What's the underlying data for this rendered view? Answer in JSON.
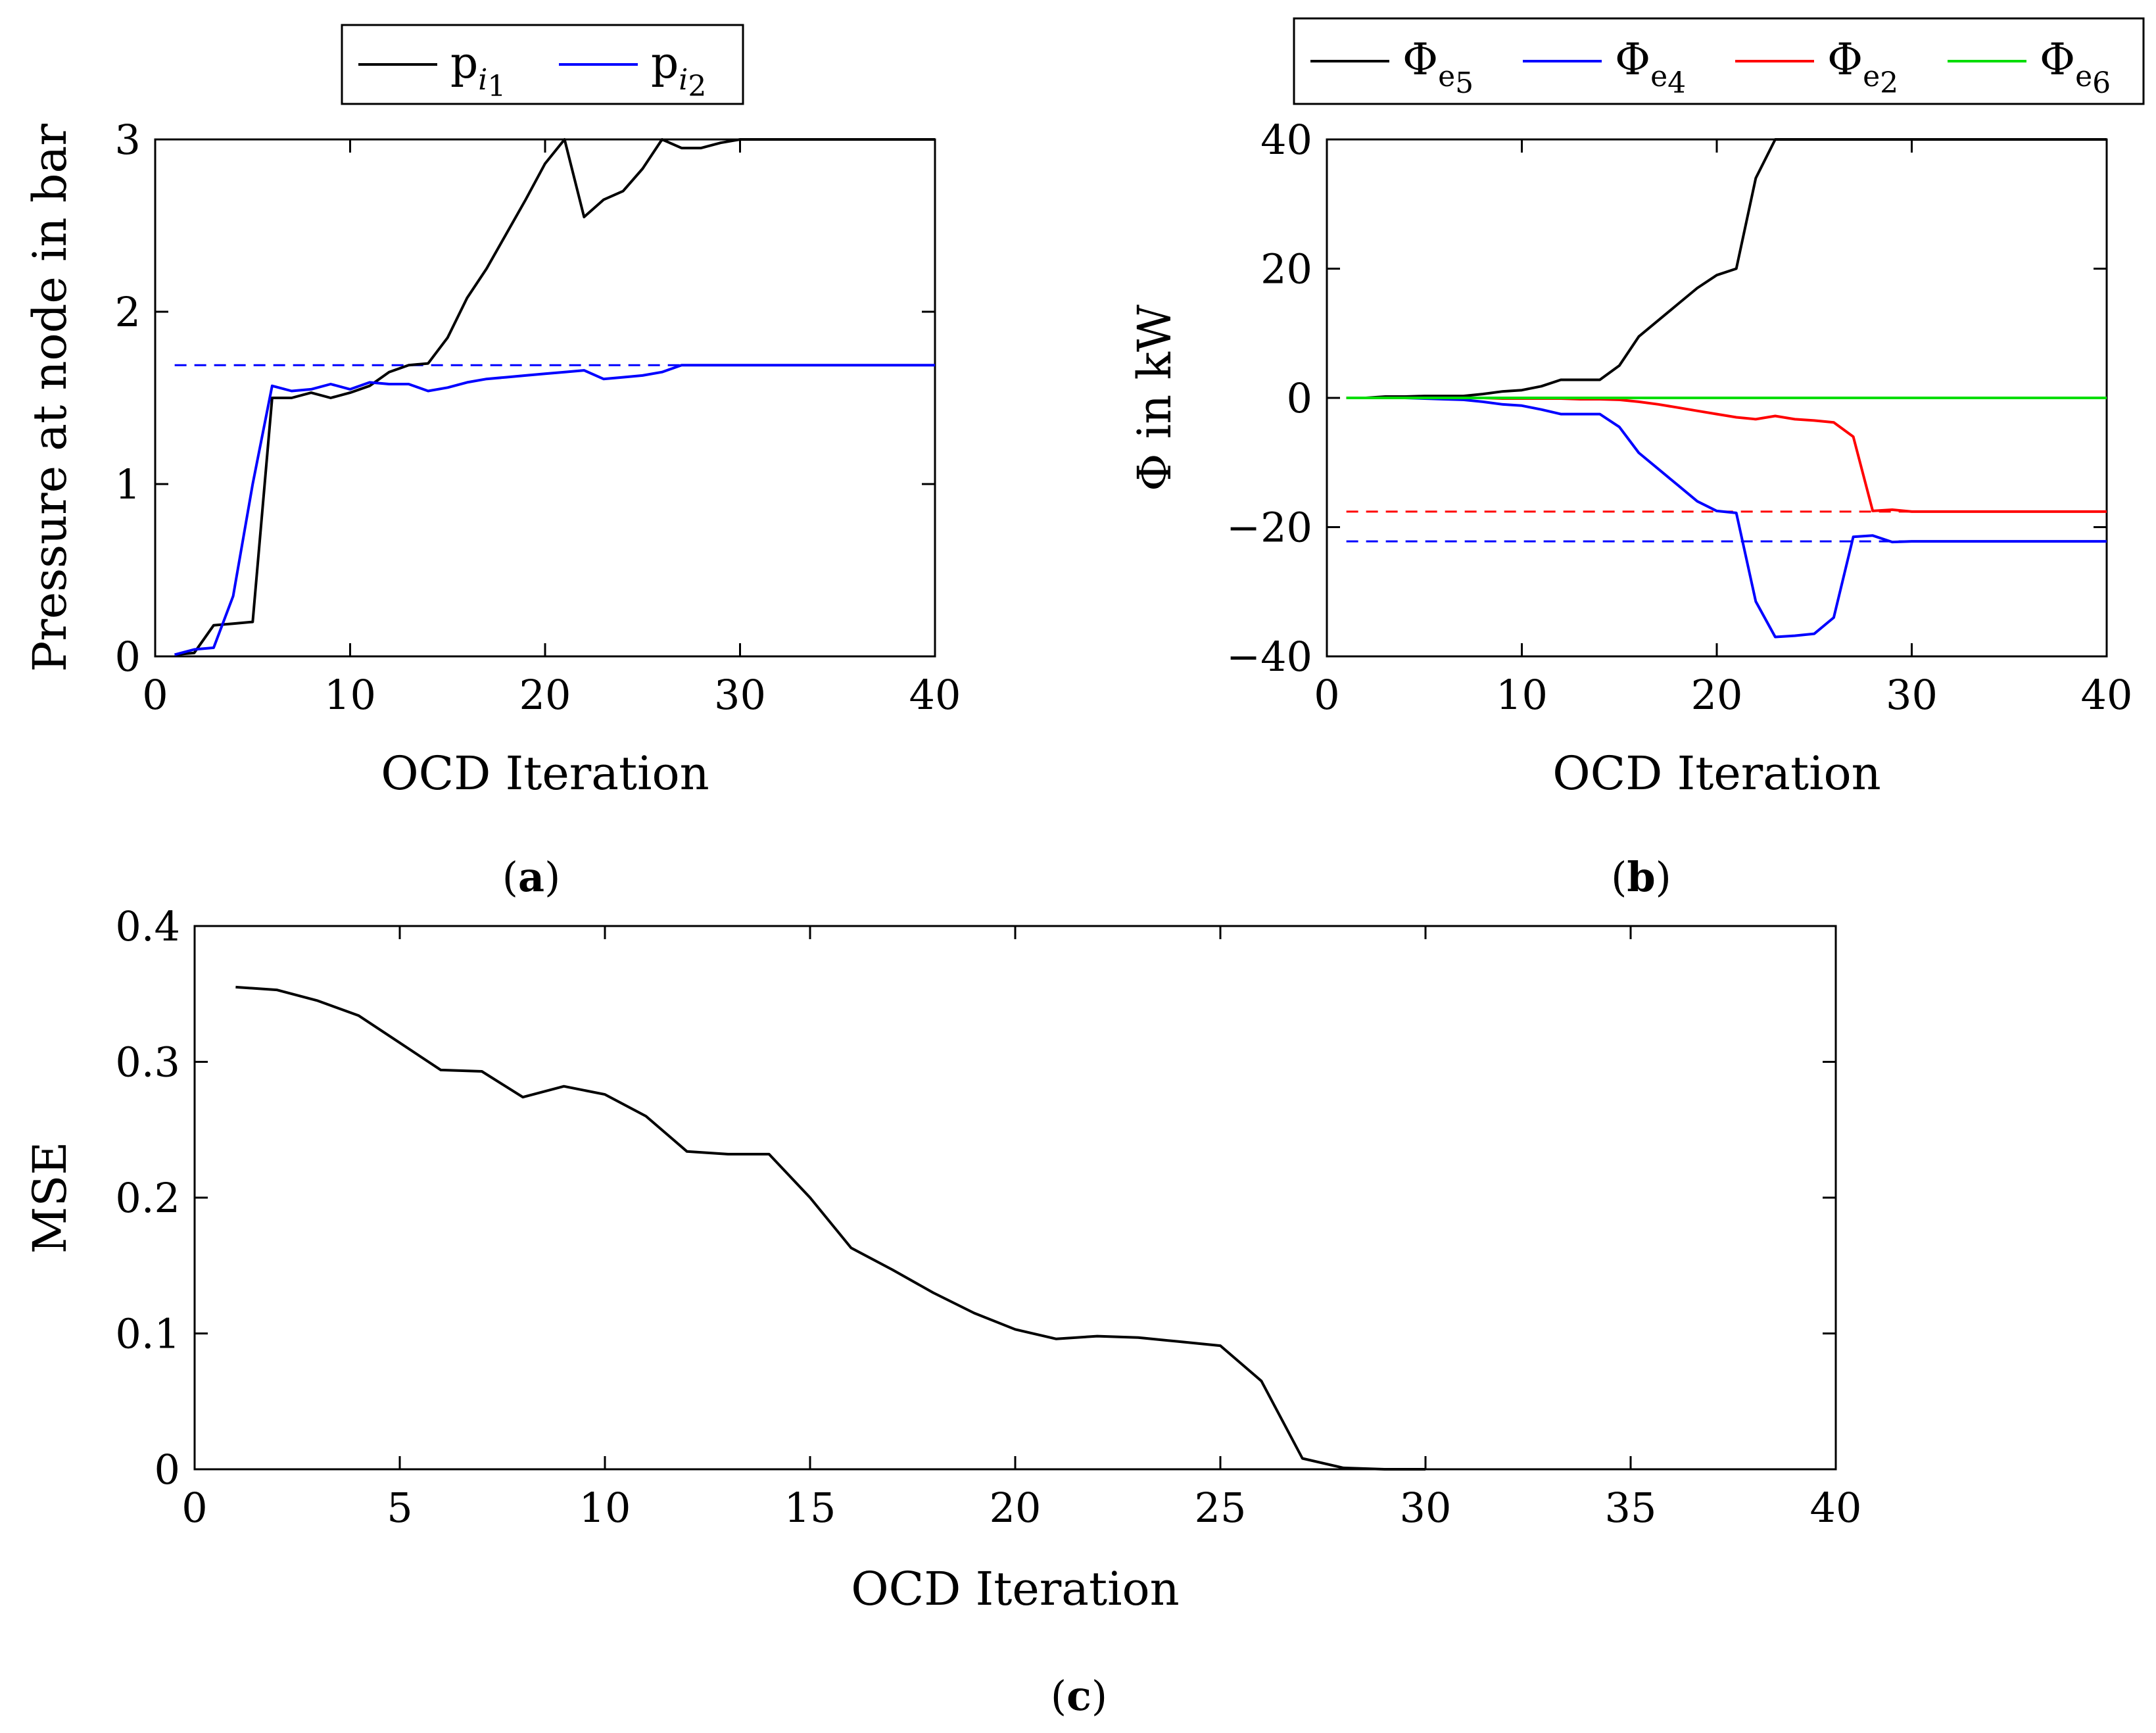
{
  "chart_data": [
    {
      "id": "a",
      "type": "line",
      "caption": "a",
      "xlabel": "OCD Iteration",
      "ylabel": "Pressure at node in bar",
      "xlim": [
        0,
        40
      ],
      "ylim": [
        0,
        3
      ],
      "xticks": [
        0,
        10,
        20,
        30,
        40
      ],
      "yticks": [
        0,
        1,
        2,
        3
      ],
      "xtick_labels": [
        "0",
        "10",
        "20",
        "30",
        "40"
      ],
      "ytick_labels": [
        "0",
        "1",
        "2",
        "3"
      ],
      "legend_position": "top",
      "legend": [
        {
          "base": "p",
          "sub": "i",
          "subsub": "1",
          "color": "#000000"
        },
        {
          "base": "p",
          "sub": "i",
          "subsub": "2",
          "color": "#0000ff"
        }
      ],
      "series": [
        {
          "name": "p_i1",
          "color": "#000000",
          "x": [
            1,
            2,
            3,
            4,
            5,
            6,
            7,
            8,
            9,
            10,
            11,
            12,
            13,
            14,
            15,
            16,
            17,
            18,
            19,
            20,
            21,
            22,
            23,
            24,
            25,
            26,
            27,
            28,
            29,
            30,
            31,
            32,
            33,
            34,
            35,
            36,
            37,
            38,
            39,
            40
          ],
          "y": [
            0.01,
            0.02,
            0.18,
            0.19,
            0.2,
            1.5,
            1.5,
            1.53,
            1.5,
            1.53,
            1.57,
            1.65,
            1.69,
            1.7,
            1.85,
            2.08,
            2.25,
            2.45,
            2.65,
            2.86,
            3.0,
            2.55,
            2.65,
            2.7,
            2.83,
            3.0,
            2.95,
            2.95,
            2.98,
            3.0,
            3.0,
            3.0,
            3.0,
            3.0,
            3.0,
            3.0,
            3.0,
            3.0,
            3.0,
            3.0
          ]
        },
        {
          "name": "p_i2",
          "color": "#0000ff",
          "x": [
            1,
            2,
            3,
            4,
            5,
            6,
            7,
            8,
            9,
            10,
            11,
            12,
            13,
            14,
            15,
            16,
            17,
            18,
            19,
            20,
            21,
            22,
            23,
            24,
            25,
            26,
            27,
            28,
            29,
            30,
            31,
            32,
            33,
            34,
            35,
            36,
            37,
            38,
            39,
            40
          ],
          "y": [
            0.01,
            0.04,
            0.05,
            0.35,
            1.0,
            1.57,
            1.54,
            1.55,
            1.58,
            1.55,
            1.59,
            1.58,
            1.58,
            1.54,
            1.56,
            1.59,
            1.61,
            1.62,
            1.63,
            1.64,
            1.65,
            1.66,
            1.61,
            1.62,
            1.63,
            1.65,
            1.69,
            1.69,
            1.69,
            1.69,
            1.69,
            1.69,
            1.69,
            1.69,
            1.69,
            1.69,
            1.69,
            1.69,
            1.69,
            1.69
          ]
        }
      ],
      "reference_lines": [
        {
          "y": 3.0,
          "x_from": 1,
          "x_to": 40,
          "color": "#000000",
          "dashed": true
        },
        {
          "y": 1.69,
          "x_from": 1,
          "x_to": 40,
          "color": "#0000ff",
          "dashed": true
        }
      ]
    },
    {
      "id": "b",
      "type": "line",
      "caption": "b",
      "xlabel": "OCD Iteration",
      "ylabel": "Φ in kW",
      "xlim": [
        0,
        40
      ],
      "ylim": [
        -40,
        40
      ],
      "xticks": [
        0,
        10,
        20,
        30,
        40
      ],
      "yticks": [
        -40,
        -20,
        0,
        20,
        40
      ],
      "xtick_labels": [
        "0",
        "10",
        "20",
        "30",
        "40"
      ],
      "ytick_labels": [
        "−40",
        "−20",
        "0",
        "20",
        "40"
      ],
      "legend_position": "top",
      "legend": [
        {
          "base": "Φ",
          "sub": "e",
          "subsub": "5",
          "color": "#000000"
        },
        {
          "base": "Φ",
          "sub": "e",
          "subsub": "4",
          "color": "#0000ff"
        },
        {
          "base": "Φ",
          "sub": "e",
          "subsub": "2",
          "color": "#ff0000"
        },
        {
          "base": "Φ",
          "sub": "e",
          "subsub": "6",
          "color": "#00dd00"
        }
      ],
      "series": [
        {
          "name": "Φ_e5",
          "color": "#000000",
          "x": [
            1,
            2,
            3,
            4,
            5,
            6,
            7,
            8,
            9,
            10,
            11,
            12,
            13,
            14,
            15,
            16,
            17,
            18,
            19,
            20,
            21,
            22,
            23,
            24,
            25,
            26,
            27,
            28,
            29,
            30,
            31,
            32,
            33,
            34,
            35,
            36,
            37,
            38,
            39,
            40
          ],
          "y": [
            0,
            0,
            0.2,
            0.2,
            0.3,
            0.3,
            0.3,
            0.6,
            1,
            1.2,
            1.8,
            2.8,
            2.8,
            2.8,
            5,
            9.5,
            12,
            14.5,
            17,
            19,
            20,
            34,
            40,
            40,
            40,
            40,
            40,
            40,
            40,
            40,
            40,
            40,
            40,
            40,
            40,
            40,
            40,
            40,
            40,
            40
          ]
        },
        {
          "name": "Φ_e4",
          "color": "#0000ff",
          "x": [
            1,
            2,
            3,
            4,
            5,
            6,
            7,
            8,
            9,
            10,
            11,
            12,
            13,
            14,
            15,
            16,
            17,
            18,
            19,
            20,
            21,
            22,
            23,
            24,
            25,
            26,
            27,
            28,
            29,
            30,
            31,
            32,
            33,
            34,
            35,
            36,
            37,
            38,
            39,
            40
          ],
          "y": [
            0,
            0,
            0,
            0,
            -0.1,
            -0.2,
            -0.3,
            -0.6,
            -1,
            -1.2,
            -1.8,
            -2.5,
            -2.5,
            -2.5,
            -4.5,
            -8.5,
            -11,
            -13.5,
            -16,
            -17.5,
            -17.8,
            -31.5,
            -37,
            -36.8,
            -36.5,
            -34,
            -21.5,
            -21.3,
            -22.3,
            -22.2,
            -22.2,
            -22.2,
            -22.2,
            -22.2,
            -22.2,
            -22.2,
            -22.2,
            -22.2,
            -22.2,
            -22.2
          ]
        },
        {
          "name": "Φ_e2",
          "color": "#ff0000",
          "x": [
            1,
            2,
            3,
            4,
            5,
            6,
            7,
            8,
            9,
            10,
            11,
            12,
            13,
            14,
            15,
            16,
            17,
            18,
            19,
            20,
            21,
            22,
            23,
            24,
            25,
            26,
            27,
            28,
            29,
            30,
            31,
            32,
            33,
            34,
            35,
            36,
            37,
            38,
            39,
            40
          ],
          "y": [
            0,
            0,
            0,
            0,
            0,
            0,
            0,
            0,
            -0.1,
            -0.1,
            -0.1,
            -0.1,
            -0.2,
            -0.2,
            -0.3,
            -0.6,
            -1,
            -1.5,
            -2,
            -2.5,
            -3,
            -3.3,
            -2.8,
            -3.3,
            -3.5,
            -3.8,
            -6,
            -17.5,
            -17.3,
            -17.6,
            -17.6,
            -17.6,
            -17.6,
            -17.6,
            -17.6,
            -17.6,
            -17.6,
            -17.6,
            -17.6,
            -17.6
          ]
        },
        {
          "name": "Φ_e6",
          "color": "#00dd00",
          "x": [
            1,
            40
          ],
          "y": [
            0,
            0
          ]
        }
      ],
      "reference_lines": [
        {
          "y": 40,
          "x_from": 1,
          "x_to": 40,
          "color": "#000000",
          "dashed": true
        },
        {
          "y": -17.6,
          "x_from": 1,
          "x_to": 40,
          "color": "#ff0000",
          "dashed": true
        },
        {
          "y": -22.2,
          "x_from": 1,
          "x_to": 40,
          "color": "#0000ff",
          "dashed": true
        }
      ]
    },
    {
      "id": "c",
      "type": "line",
      "caption": "c",
      "xlabel": "OCD Iteration",
      "ylabel": "MSE",
      "xlim": [
        0,
        40
      ],
      "ylim": [
        0,
        0.4
      ],
      "xticks": [
        0,
        5,
        10,
        15,
        20,
        25,
        30,
        35,
        40
      ],
      "yticks": [
        0,
        0.1,
        0.2,
        0.3,
        0.4
      ],
      "xtick_labels": [
        "0",
        "5",
        "10",
        "15",
        "20",
        "25",
        "30",
        "35",
        "40"
      ],
      "ytick_labels": [
        "0",
        "0.1",
        "0.2",
        "0.3",
        "0.4"
      ],
      "legend": [],
      "series": [
        {
          "name": "MSE",
          "color": "#000000",
          "x": [
            1,
            2,
            3,
            4,
            5,
            6,
            7,
            8,
            9,
            10,
            11,
            12,
            13,
            14,
            15,
            16,
            17,
            18,
            19,
            20,
            21,
            22,
            23,
            24,
            25,
            26,
            27,
            28,
            29,
            30
          ],
          "y": [
            0.355,
            0.353,
            0.345,
            0.334,
            0.314,
            0.294,
            0.293,
            0.274,
            0.282,
            0.276,
            0.26,
            0.234,
            0.232,
            0.232,
            0.2,
            0.163,
            0.147,
            0.13,
            0.115,
            0.103,
            0.096,
            0.098,
            0.097,
            0.094,
            0.091,
            0.065,
            0.008,
            0.001,
            0,
            0
          ]
        }
      ],
      "reference_lines": []
    }
  ]
}
